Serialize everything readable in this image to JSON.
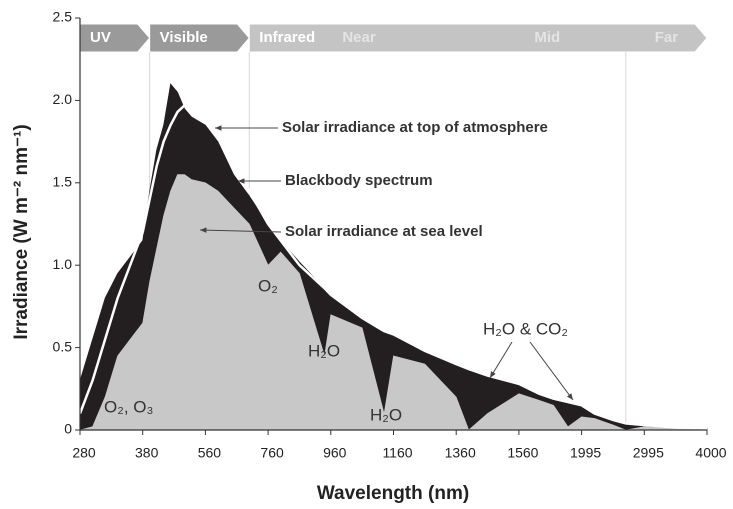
{
  "chart_data": {
    "type": "area",
    "xlabel": "Wavelength (nm)",
    "ylabel": "Irradiance (W m⁻² nm⁻¹)",
    "x": [
      280,
      300,
      320,
      340,
      360,
      380,
      400,
      420,
      440,
      460,
      480,
      500,
      520,
      560,
      600,
      650,
      700,
      760,
      800,
      860,
      940,
      960,
      1060,
      1130,
      1160,
      1260,
      1360,
      1400,
      1460,
      1560,
      1700,
      1800,
      1900,
      1995,
      2200,
      2500,
      2700,
      2995,
      3500,
      4000
    ],
    "series": [
      {
        "name": "Solar irradiance at top of atmosphere",
        "color": "#231f20",
        "values": [
          0.3,
          0.55,
          0.8,
          0.95,
          1.05,
          1.15,
          1.45,
          1.7,
          1.85,
          2.1,
          2.05,
          1.95,
          1.9,
          1.85,
          1.75,
          1.55,
          1.42,
          1.25,
          1.15,
          1.02,
          0.86,
          0.82,
          0.68,
          0.6,
          0.58,
          0.48,
          0.4,
          0.37,
          0.33,
          0.28,
          0.22,
          0.19,
          0.17,
          0.15,
          0.1,
          0.06,
          0.04,
          0.03,
          0.015,
          0.01
        ]
      },
      {
        "name": "Solar irradiance at sea level",
        "color": "#c8c8c8",
        "values": [
          0,
          0.02,
          0.2,
          0.45,
          0.55,
          0.65,
          0.9,
          1.1,
          1.3,
          1.45,
          1.55,
          1.55,
          1.52,
          1.5,
          1.45,
          1.35,
          1.25,
          1.0,
          1.08,
          0.95,
          0.45,
          0.7,
          0.62,
          0.1,
          0.45,
          0.4,
          0.2,
          0,
          0.1,
          0.22,
          0.18,
          0.15,
          0.02,
          0.08,
          0.07,
          0.03,
          0,
          0.02,
          0.01,
          0
        ]
      },
      {
        "name": "Blackbody spectrum",
        "color": "#ffffff",
        "line": true,
        "values": [
          0.1,
          0.3,
          0.55,
          0.8,
          1.0,
          1.2,
          1.4,
          1.6,
          1.75,
          1.85,
          1.93,
          1.97,
          1.97,
          1.9,
          1.8,
          1.6,
          1.45,
          1.25,
          1.15,
          1.0,
          0.86,
          0.82,
          0.68,
          0.6,
          0.58,
          0.48,
          0.4,
          0.37,
          0.33,
          0.28,
          0.22,
          0.19,
          0.17,
          0.15,
          0.1,
          0.06,
          0.04,
          0.03,
          0.015,
          0.01
        ]
      }
    ],
    "xlim": [
      280,
      4000
    ],
    "xticks": [
      280,
      380,
      560,
      760,
      960,
      1160,
      1360,
      1560,
      1995,
      2995,
      4000
    ],
    "ylim": [
      0,
      2.5
    ],
    "yticks": [
      0,
      0.5,
      {
        "value": 1,
        "label": "1.0"
      },
      1.5,
      {
        "value": 2,
        "label": "2.0"
      },
      2.5
    ],
    "regions": [
      {
        "label": "UV",
        "start": 280,
        "end": 400,
        "color": "#9a9a9a"
      },
      {
        "label": "Visible",
        "start": 400,
        "end": 700,
        "color": "#9a9a9a"
      },
      {
        "label": "Infrared",
        "start": 700,
        "end": 4000,
        "color": "#c4c4c4"
      }
    ],
    "subregions": [
      {
        "label": "Near",
        "start": 700,
        "end": 1400
      },
      {
        "label": "Mid",
        "start": 1400,
        "end": 2700
      },
      {
        "label": "Far",
        "start": 2700,
        "end": 4000
      }
    ],
    "annotations": [
      "O₂",
      "H₂O",
      "H₂O",
      "H₂O & CO₂",
      "O₂, O₃"
    ]
  }
}
